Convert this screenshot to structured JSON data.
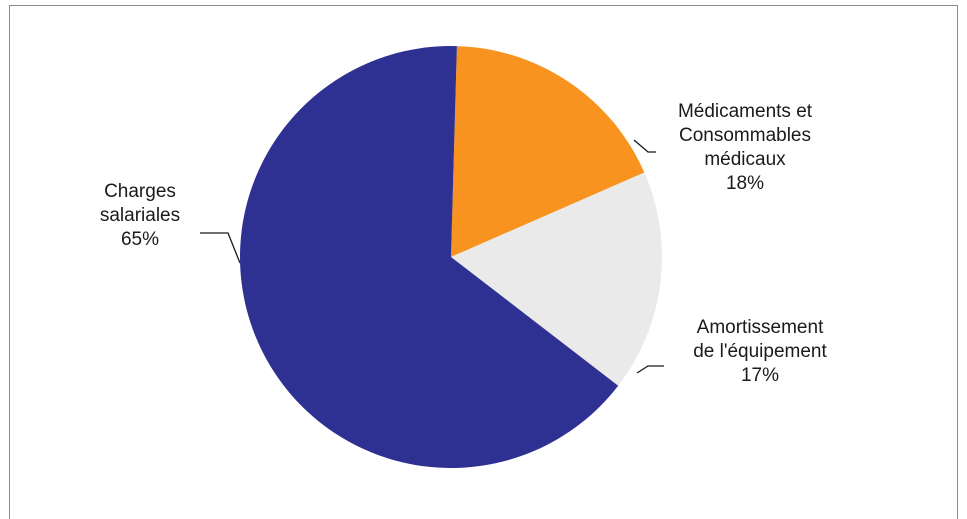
{
  "chart_data": {
    "type": "pie",
    "title": "",
    "slices": [
      {
        "label_lines": [
          "Médicaments et",
          "Consommables",
          "médicaux"
        ],
        "value": 18,
        "pct": "18%",
        "color": "#f7931e"
      },
      {
        "label_lines": [
          "Amortissement",
          "de l'équipement"
        ],
        "value": 17,
        "pct": "17%",
        "color": "#eaeaea"
      },
      {
        "label_lines": [
          "Charges",
          "salariales"
        ],
        "value": 65,
        "pct": "65%",
        "color": "#2e3191"
      }
    ],
    "start_angle_deg": 1.6,
    "direction": "clockwise",
    "legend": "none",
    "data_labels": "outside with leader lines"
  }
}
